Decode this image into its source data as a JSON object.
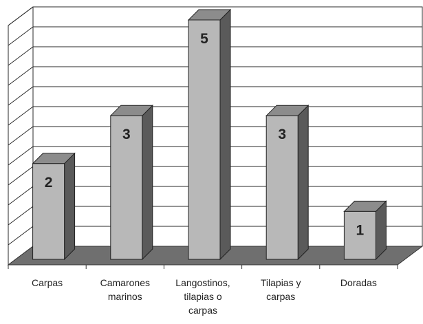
{
  "chart_data": {
    "type": "bar",
    "style": "3d",
    "categories": [
      [
        "Carpas"
      ],
      [
        "Camarones",
        "marinos"
      ],
      [
        "Langostinos,",
        "tilapias o",
        "carpas"
      ],
      [
        "Tilapias y",
        "carpas"
      ],
      [
        "Doradas"
      ]
    ],
    "values": [
      2,
      3,
      5,
      3,
      1
    ],
    "data_labels": [
      "2",
      "3",
      "5",
      "3",
      "1"
    ],
    "title": "",
    "xlabel": "",
    "ylabel": "",
    "ylim": [
      0,
      5
    ],
    "grid": true,
    "legend": "none",
    "colors": {
      "bar_front": "#b8b8b8",
      "bar_side": "#5a5a5a",
      "bar_top": "#8c8c8c",
      "floor": "#6f6f6f",
      "gridline": "#2a2a2a",
      "wall": "#ffffff",
      "label": "#222222"
    }
  }
}
